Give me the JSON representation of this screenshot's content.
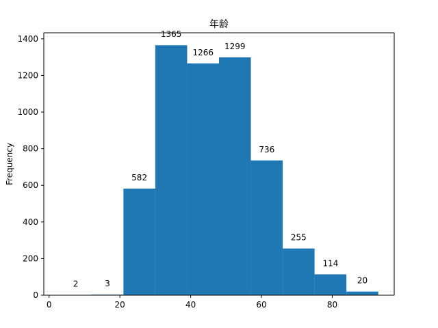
{
  "chart_data": {
    "type": "bar",
    "title": "年龄",
    "xlabel": "",
    "ylabel": "Frequency",
    "bin_edges": [
      3.0,
      12.0,
      21.0,
      30.0,
      39.0,
      48.0,
      57.0,
      66.0,
      75.0,
      84.0,
      93.0
    ],
    "values": [
      2,
      3,
      582,
      1365,
      1266,
      1299,
      736,
      255,
      114,
      20
    ],
    "data_labels": [
      "2",
      "3",
      "582",
      "1365",
      "1266",
      "1299",
      "736",
      "255",
      "114",
      "20"
    ],
    "xlim": [
      -1.5,
      97.5
    ],
    "ylim": [
      0,
      1433
    ],
    "x_ticks": [
      0,
      20,
      40,
      60,
      80
    ],
    "x_tick_labels": [
      "0",
      "20",
      "40",
      "60",
      "80"
    ],
    "y_ticks": [
      0,
      200,
      400,
      600,
      800,
      1000,
      1200,
      1400
    ],
    "y_tick_labels": [
      "0",
      "200",
      "400",
      "600",
      "800",
      "1000",
      "1200",
      "1400"
    ],
    "bar_color": "#1f77b4",
    "grid": false,
    "legend": "none"
  }
}
